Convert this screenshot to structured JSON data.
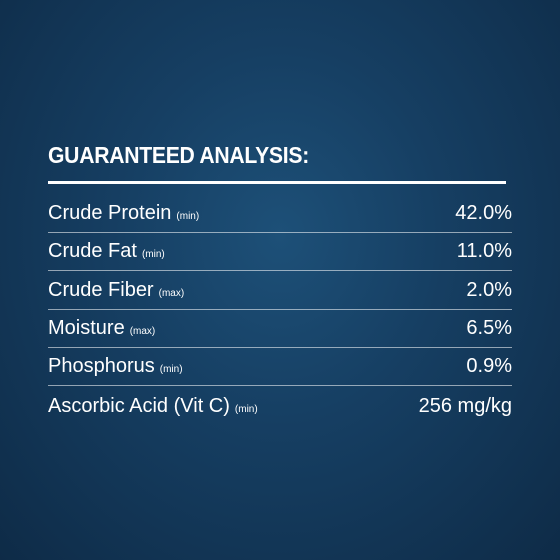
{
  "title": "GUARANTEED ANALYSIS:",
  "rows": [
    {
      "name": "Crude Protein",
      "qualifier": "(min)",
      "value": "42.0%"
    },
    {
      "name": "Crude Fat",
      "qualifier": "(min)",
      "value": "11.0%"
    },
    {
      "name": "Crude Fiber",
      "qualifier": "(max)",
      "value": "2.0%"
    },
    {
      "name": "Moisture",
      "qualifier": "(max)",
      "value": "6.5%"
    },
    {
      "name": "Phosphorus",
      "qualifier": "(min)",
      "value": "0.9%"
    },
    {
      "name": "Ascorbic Acid (Vit C)",
      "qualifier": "(min)",
      "value": "256 mg/kg"
    }
  ]
}
